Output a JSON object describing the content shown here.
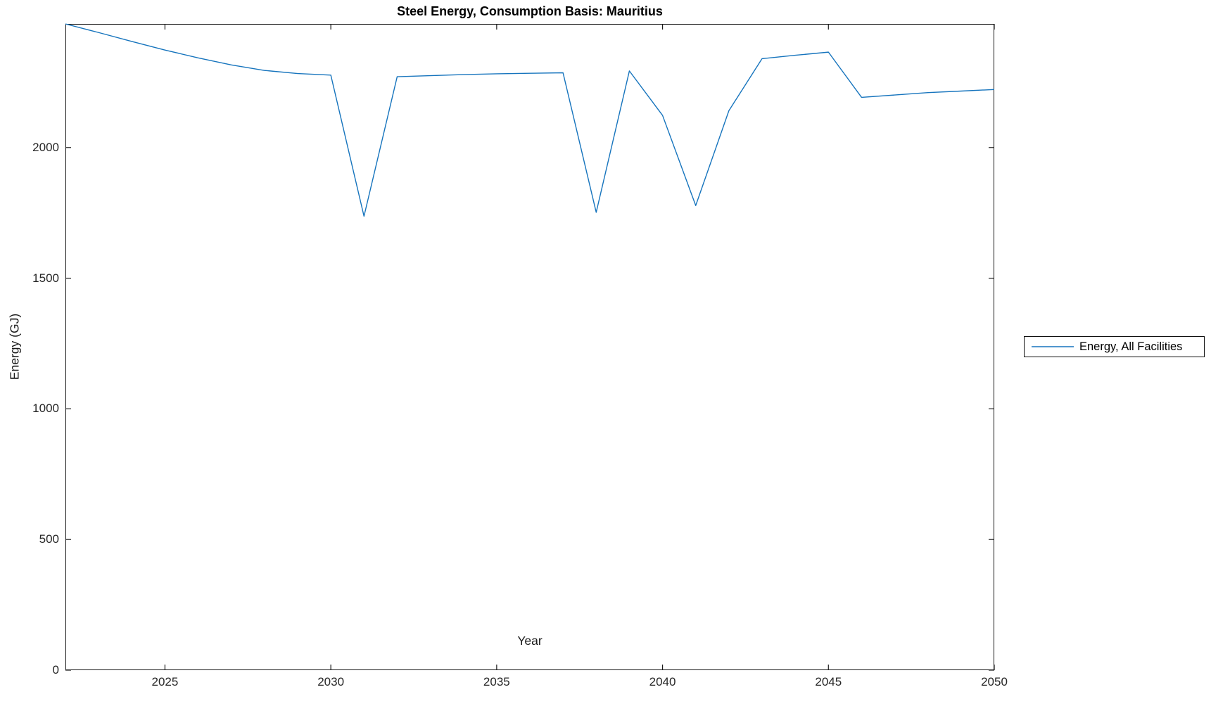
{
  "chart_data": {
    "type": "line",
    "title": "Steel Energy, Consumption Basis: Mauritius",
    "xlabel": "Year",
    "ylabel": "Energy (GJ)",
    "x": [
      2022,
      2023,
      2024,
      2025,
      2026,
      2027,
      2028,
      2029,
      2030,
      2031,
      2032,
      2033,
      2034,
      2035,
      2036,
      2037,
      2038,
      2039,
      2040,
      2041,
      2042,
      2043,
      2044,
      2045,
      2046,
      2047,
      2048,
      2049,
      2050
    ],
    "series": [
      {
        "name": "Energy, All Facilities",
        "color": "#1674bd",
        "values": [
          2473,
          2440,
          2406,
          2373,
          2343,
          2316,
          2295,
          2283,
          2277,
          1737,
          2271,
          2275,
          2279,
          2282,
          2284,
          2286,
          1752,
          2293,
          2123,
          1778,
          2141,
          2340,
          2353,
          2365,
          2192,
          2201,
          2210,
          2216,
          2222
        ]
      }
    ],
    "xlim": [
      2022,
      2050
    ],
    "ylim": [
      0,
      2473
    ],
    "xticks": [
      2025,
      2030,
      2035,
      2040,
      2045,
      2050
    ],
    "yticks": [
      0,
      500,
      1000,
      1500,
      2000
    ],
    "grid": false,
    "legend_position": "outside-right"
  },
  "colors": {
    "axis": "#1a1a1a",
    "background": "#ffffff"
  }
}
